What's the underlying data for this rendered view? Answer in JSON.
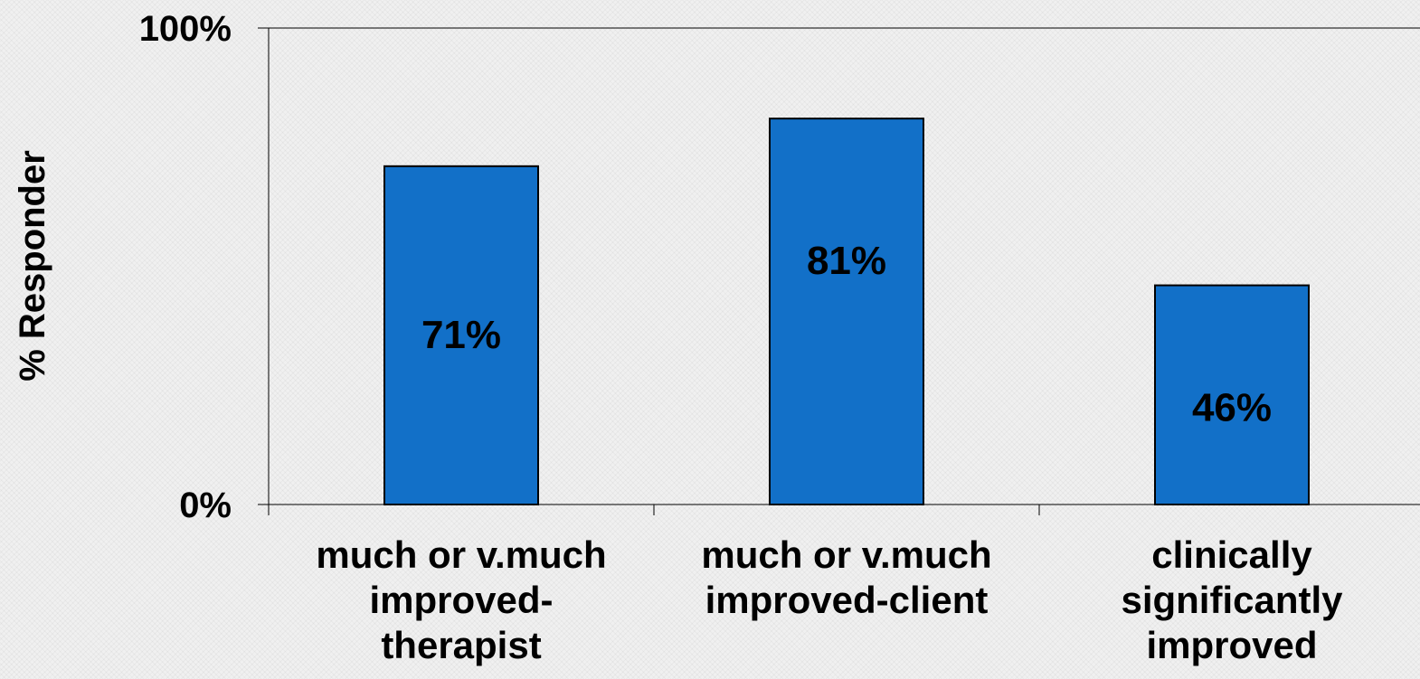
{
  "chart_data": {
    "type": "bar",
    "ylabel": "% Responder",
    "ylim": [
      0,
      100
    ],
    "y_tick_labels": [
      "0%",
      "100%"
    ],
    "categories": [
      [
        "much or v.much",
        "improved-",
        "therapist"
      ],
      [
        "much or v.much",
        "improved-client"
      ],
      [
        "clinically",
        "significantly",
        "improved"
      ]
    ],
    "values": [
      71,
      81,
      46
    ],
    "data_labels": [
      "71%",
      "81%",
      "46%"
    ],
    "grid": false,
    "legend": "none",
    "colors": {
      "bar_fill": "#1270c8",
      "bar_stroke": "#000000",
      "axis": "#000000"
    }
  }
}
